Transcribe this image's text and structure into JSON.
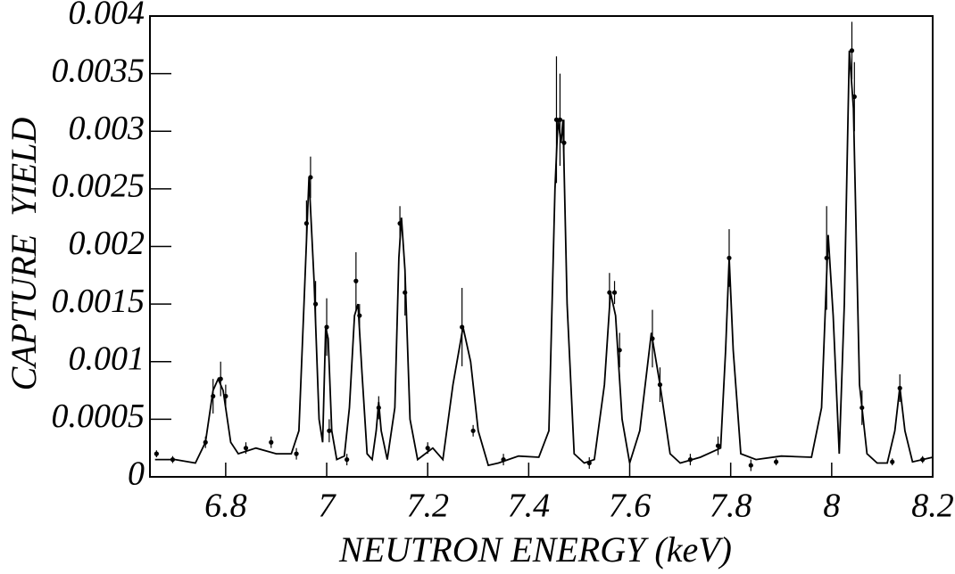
{
  "chart_data": {
    "type": "line",
    "xlabel": "NEUTRON ENERGY (keV)",
    "ylabel": "CAPTURE  YIELD",
    "color": "#000000",
    "xlim": [
      6.65,
      8.2
    ],
    "xticks": [
      6.8,
      7,
      7.2,
      7.4,
      7.6,
      7.8,
      8,
      8.2
    ],
    "ylim": [
      0,
      0.004
    ],
    "yticks": [
      0,
      0.0005,
      0.001,
      0.0015,
      0.002,
      0.0025,
      0.003,
      0.0035,
      0.004
    ],
    "x": [
      6.66,
      6.7,
      6.74,
      6.76,
      6.775,
      6.785,
      6.795,
      6.81,
      6.825,
      6.86,
      6.9,
      6.93,
      6.945,
      6.955,
      6.965,
      6.975,
      6.985,
      6.992,
      6.998,
      7.003,
      7.01,
      7.02,
      7.035,
      7.045,
      7.055,
      7.062,
      7.07,
      7.08,
      7.09,
      7.098,
      7.103,
      7.108,
      7.12,
      7.135,
      7.143,
      7.148,
      7.155,
      7.165,
      7.18,
      7.21,
      7.23,
      7.25,
      7.27,
      7.285,
      7.3,
      7.32,
      7.34,
      7.38,
      7.42,
      7.44,
      7.452,
      7.458,
      7.464,
      7.468,
      7.476,
      7.49,
      7.51,
      7.53,
      7.55,
      7.562,
      7.572,
      7.585,
      7.6,
      7.62,
      7.643,
      7.66,
      7.68,
      7.7,
      7.74,
      7.78,
      7.79,
      7.797,
      7.805,
      7.82,
      7.85,
      7.9,
      7.96,
      7.98,
      7.993,
      8.003,
      8.015,
      8.025,
      8.035,
      8.043,
      8.055,
      8.07,
      8.09,
      8.11,
      8.125,
      8.135,
      8.145,
      8.16,
      8.2
    ],
    "values": [
      0.00015,
      0.00015,
      0.00012,
      0.0003,
      0.00075,
      0.00085,
      0.00075,
      0.0003,
      0.0002,
      0.00025,
      0.0002,
      0.0002,
      0.0004,
      0.0015,
      0.0026,
      0.0017,
      0.0005,
      0.0003,
      0.0013,
      0.0012,
      0.0004,
      0.00015,
      0.00018,
      0.0006,
      0.0014,
      0.0015,
      0.0009,
      0.0002,
      0.00015,
      0.0004,
      0.00065,
      0.0004,
      0.00015,
      0.0006,
      0.0019,
      0.00225,
      0.0018,
      0.0005,
      0.00015,
      0.00025,
      0.00015,
      0.0008,
      0.0013,
      0.001,
      0.0004,
      0.0001,
      0.00012,
      0.00018,
      0.00017,
      0.0004,
      0.0025,
      0.0031,
      0.0029,
      0.0031,
      0.0015,
      0.0002,
      0.00012,
      0.00015,
      0.0008,
      0.0016,
      0.0014,
      0.0005,
      0.00012,
      0.0004,
      0.00125,
      0.0008,
      0.0002,
      0.00012,
      0.00017,
      0.00025,
      0.0011,
      0.0019,
      0.0011,
      0.0002,
      0.00015,
      0.00018,
      0.00017,
      0.0006,
      0.0021,
      0.0014,
      0.0002,
      0.0015,
      0.0037,
      0.0032,
      0.0008,
      0.0002,
      0.00012,
      0.00012,
      0.0004,
      0.00078,
      0.0004,
      0.00013,
      0.00017
    ],
    "points": {
      "x": [
        6.663,
        6.695,
        6.76,
        6.775,
        6.79,
        6.8,
        6.84,
        6.89,
        6.94,
        6.96,
        6.968,
        6.978,
        7.0,
        7.005,
        7.04,
        7.058,
        7.065,
        7.103,
        7.145,
        7.155,
        7.2,
        7.268,
        7.29,
        7.35,
        7.455,
        7.462,
        7.47,
        7.52,
        7.56,
        7.57,
        7.58,
        7.645,
        7.66,
        7.72,
        7.775,
        7.797,
        7.84,
        7.89,
        7.99,
        8.04,
        8.045,
        8.06,
        8.12,
        8.135,
        8.18
      ],
      "values": [
        0.0002,
        0.00015,
        0.0003,
        0.0007,
        0.00085,
        0.0007,
        0.00025,
        0.0003,
        0.0002,
        0.0022,
        0.0026,
        0.0015,
        0.0013,
        0.0004,
        0.00015,
        0.0017,
        0.0014,
        0.0006,
        0.0022,
        0.0016,
        0.00025,
        0.0013,
        0.0004,
        0.00015,
        0.0031,
        0.0031,
        0.0029,
        0.00012,
        0.0016,
        0.0016,
        0.0011,
        0.0012,
        0.0008,
        0.00015,
        0.00027,
        0.0019,
        0.0001,
        0.00013,
        0.0019,
        0.0037,
        0.0033,
        0.0006,
        0.00013,
        0.00077,
        0.00015
      ],
      "errors": [
        3e-05,
        3e-05,
        5e-05,
        0.00015,
        0.00015,
        0.0001,
        5e-05,
        5e-05,
        5e-05,
        0.0002,
        0.00018,
        0.0002,
        0.00025,
        0.0001,
        5e-05,
        0.00025,
        0.0001,
        0.0001,
        0.00015,
        0.0002,
        5e-05,
        0.00034,
        5e-05,
        5e-05,
        0.00055,
        0.0004,
        0.0002,
        5e-05,
        0.00017,
        0.0001,
        0.00015,
        0.00025,
        0.00015,
        5e-05,
        8e-05,
        0.00025,
        5e-05,
        3e-05,
        0.00045,
        0.00025,
        0.0003,
        0.00015,
        3e-05,
        0.00012,
        3e-05
      ]
    }
  }
}
